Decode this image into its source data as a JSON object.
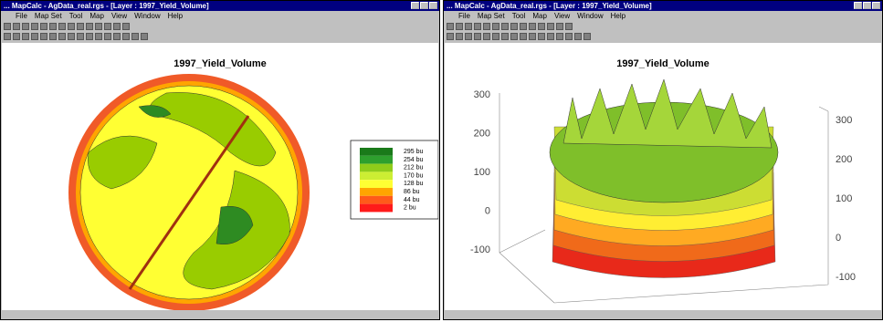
{
  "windows": [
    {
      "title": "... MapCalc - AgData_real.rgs - [Layer : 1997_Yield_Volume]",
      "menu": [
        "File",
        "Map Set",
        "Tool",
        "Map",
        "View",
        "Window",
        "Help"
      ],
      "map_title": "1997_Yield_Volume",
      "legend": [
        "295 bu",
        "254 bu",
        "212 bu",
        "170 bu",
        "128 bu",
        "86 bu",
        "44 bu",
        "2 bu"
      ]
    },
    {
      "title": "... MapCalc - AgData_real.rgs - [Layer : 1997_Yield_Volume]",
      "menu": [
        "File",
        "Map Set",
        "Tool",
        "Map",
        "View",
        "Window",
        "Help"
      ],
      "map_title": "1997_Yield_Volume",
      "left_axis": [
        "300",
        "200",
        "100",
        "0",
        "-100"
      ],
      "right_axis": [
        "300",
        "200",
        "100",
        "0",
        "-100"
      ]
    }
  ]
}
